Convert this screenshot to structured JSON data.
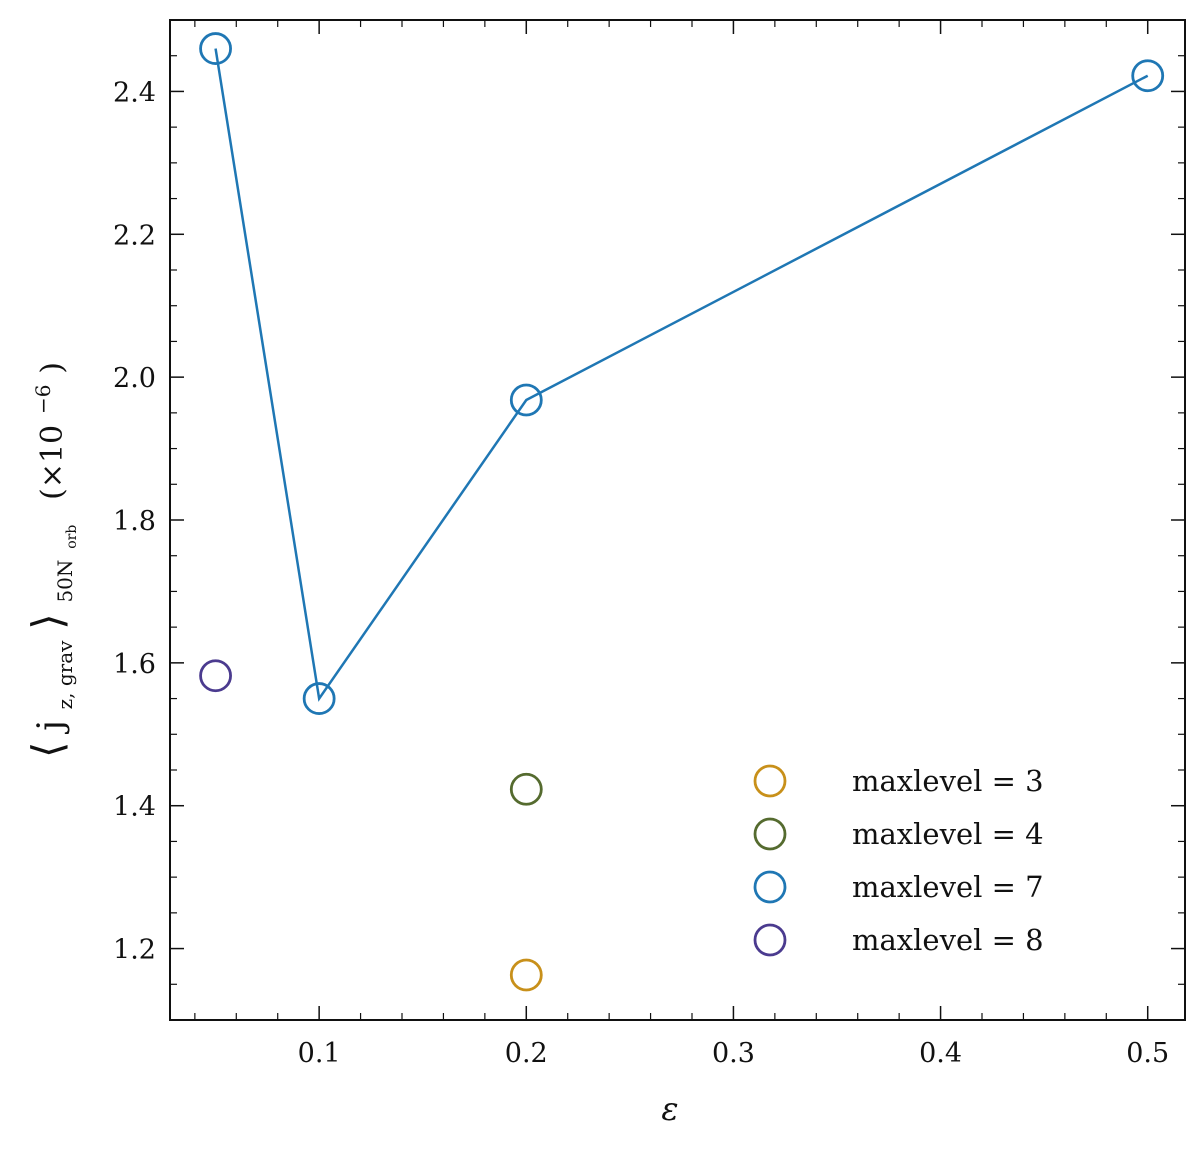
{
  "chart_data": {
    "type": "scatter",
    "xlabel": "ε",
    "ylabel": {
      "main": "j̇",
      "sub": "z, grav",
      "subscript_outer": "50N",
      "subscript_outer_sub": "orb",
      "units": "(×10",
      "units_exp": "−6",
      "units_close": ")"
    },
    "xlim": [
      0.028,
      0.518
    ],
    "ylim": [
      1.1,
      2.5
    ],
    "xticks": [
      0.1,
      0.2,
      0.3,
      0.4,
      0.5
    ],
    "xtick_labels": [
      "0.1",
      "0.2",
      "0.3",
      "0.4",
      "0.5"
    ],
    "yticks": [
      1.2,
      1.4,
      1.6,
      1.8,
      2.0,
      2.2,
      2.4
    ],
    "ytick_labels": [
      "1.2",
      "1.4",
      "1.6",
      "1.8",
      "2.0",
      "2.2",
      "2.4"
    ],
    "legend_position": "lower-right",
    "series": [
      {
        "name": "maxlevel = 3",
        "color": "#c8901a",
        "connected": false,
        "x": [
          0.2
        ],
        "y": [
          1.163
        ]
      },
      {
        "name": "maxlevel = 4",
        "color": "#556b2f",
        "connected": false,
        "x": [
          0.2
        ],
        "y": [
          1.423
        ]
      },
      {
        "name": "maxlevel = 7",
        "color": "#1f77b4",
        "connected": true,
        "x": [
          0.05,
          0.1,
          0.2,
          0.5
        ],
        "y": [
          2.46,
          1.55,
          1.968,
          2.422
        ]
      },
      {
        "name": "maxlevel = 8",
        "color": "#4b3b8f",
        "connected": false,
        "x": [
          0.05
        ],
        "y": [
          1.582
        ]
      }
    ]
  }
}
